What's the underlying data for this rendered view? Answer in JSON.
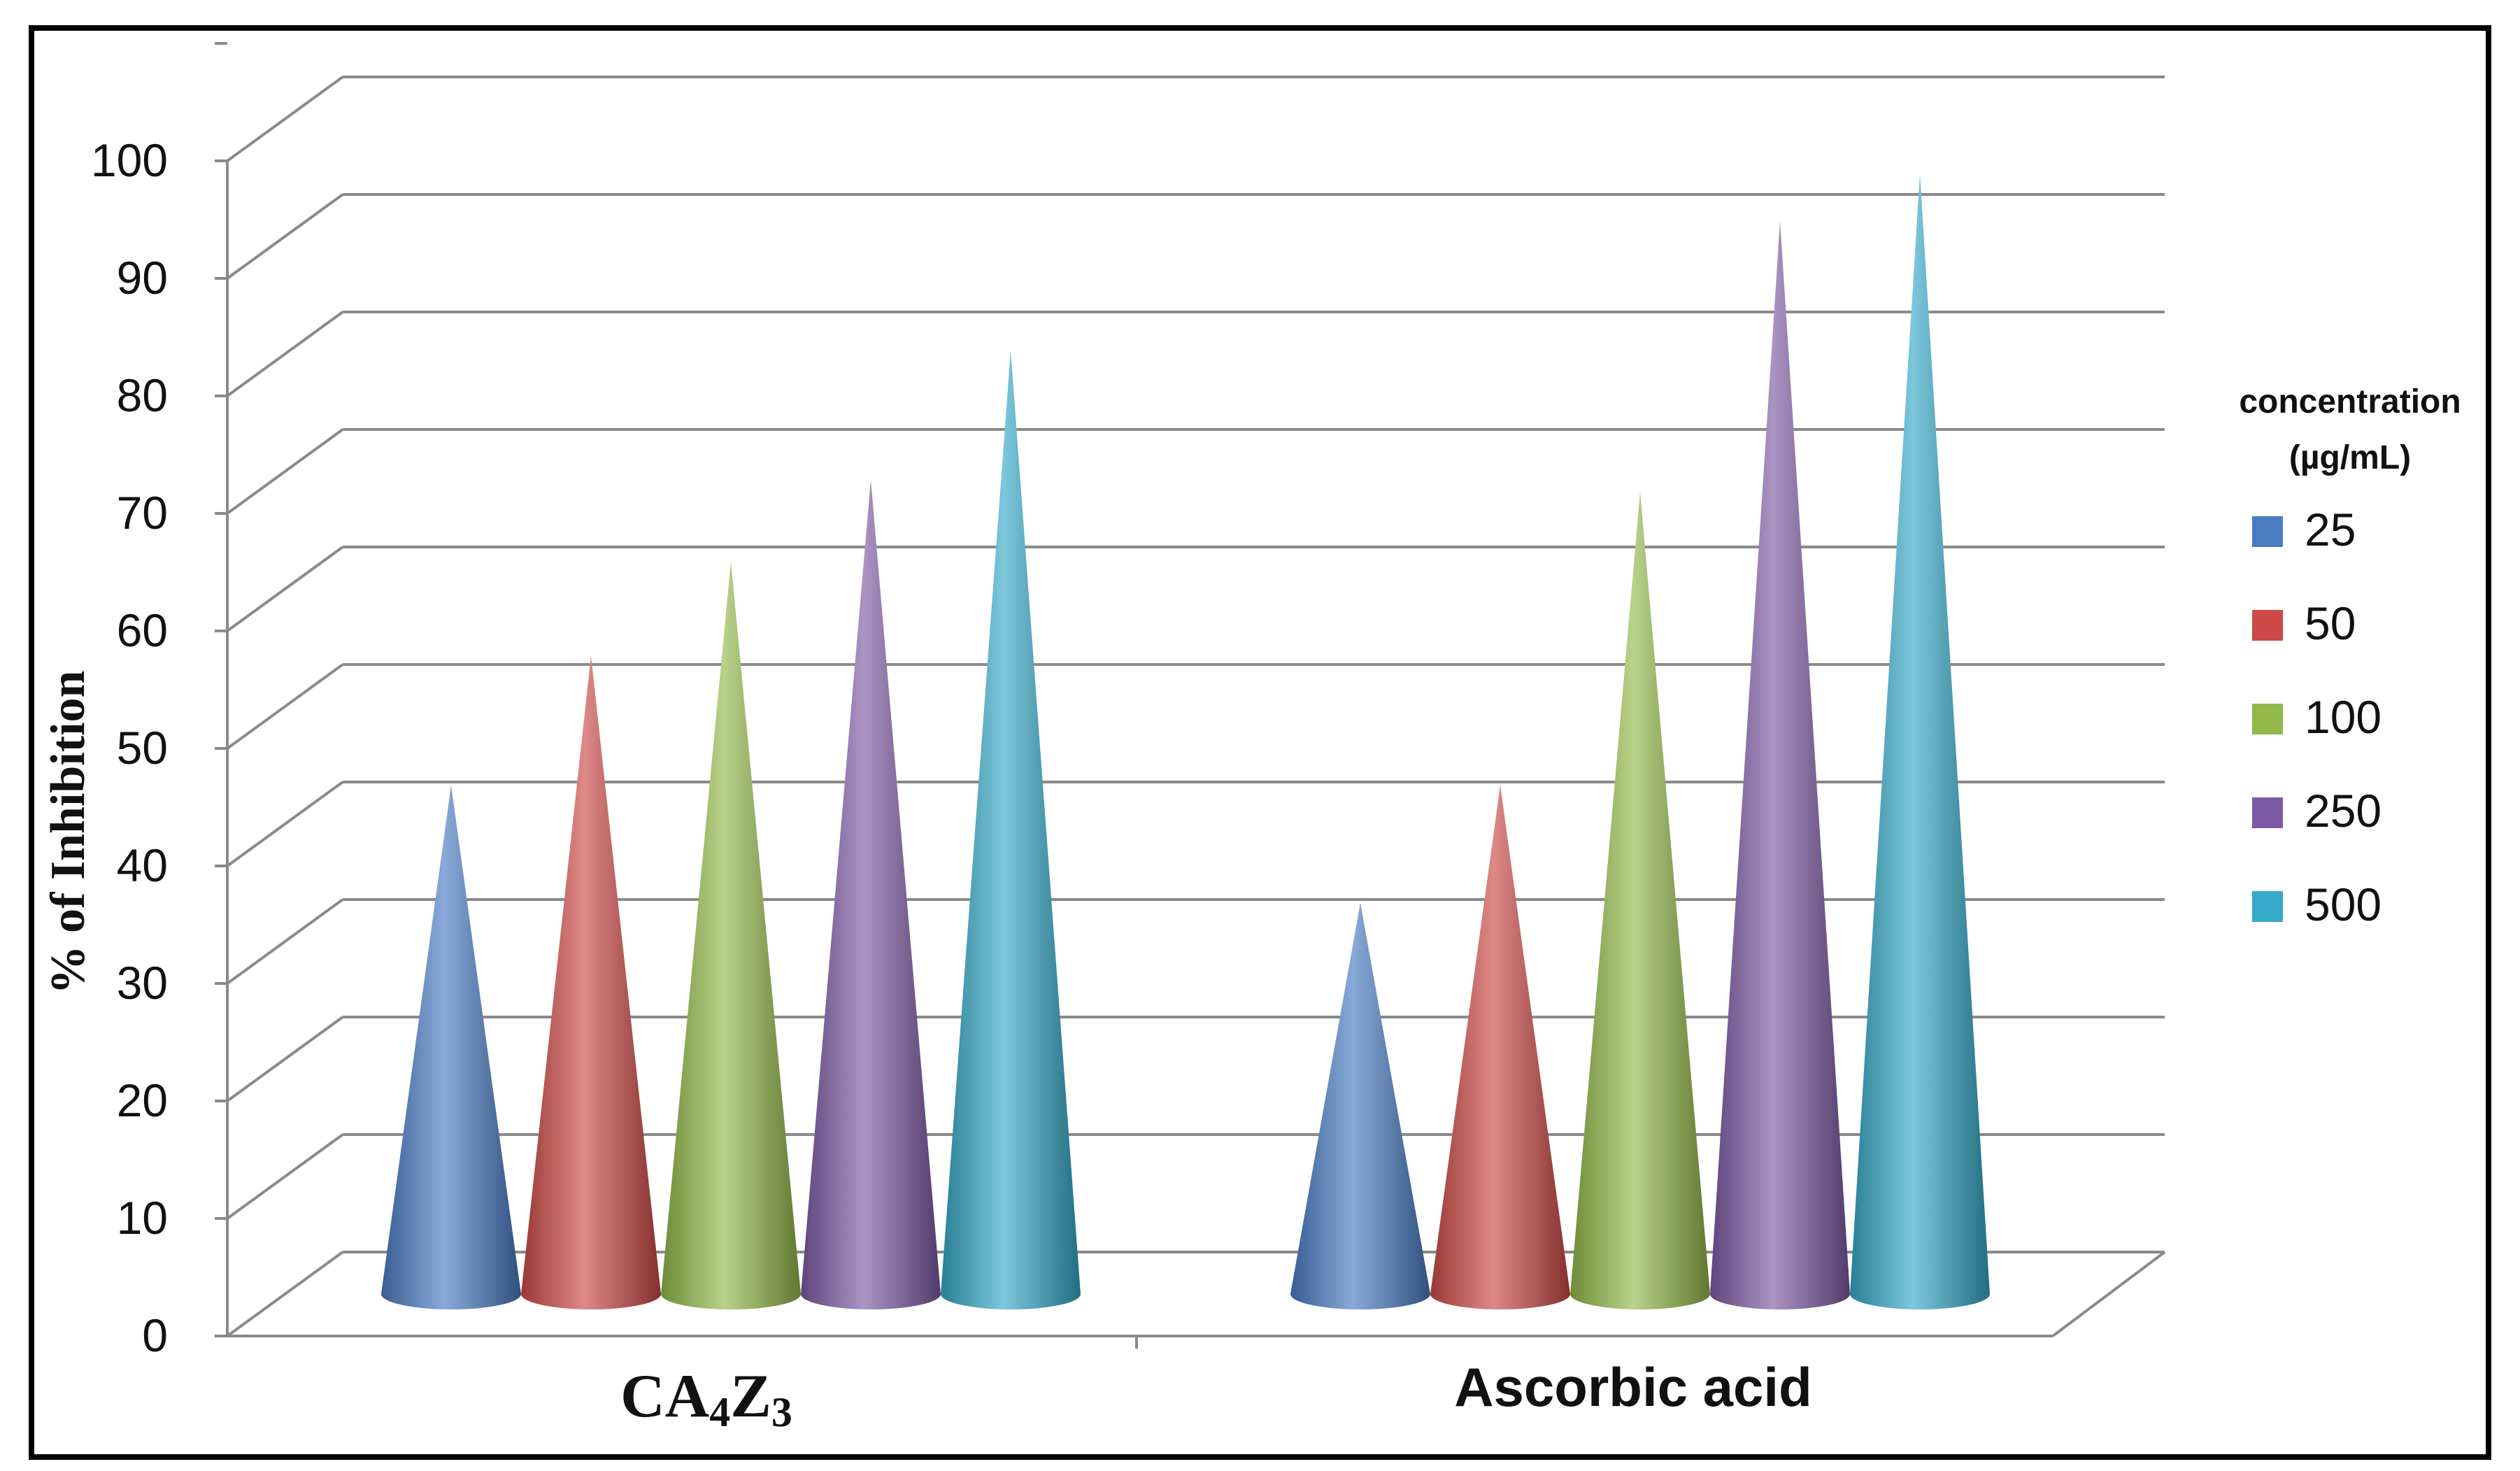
{
  "chart_data": {
    "type": "bar",
    "style": "3d-cone",
    "ylabel": "% of Inhibition",
    "ylim": [
      0,
      100
    ],
    "yticks": [
      "0",
      "10",
      "20",
      "30",
      "40",
      "50",
      "60",
      "70",
      "80",
      "90",
      "100"
    ],
    "categories": [
      {
        "name": "CA",
        "sub1": "4",
        "mid": "Z",
        "sub2": "3"
      },
      {
        "name": "Ascorbic acid"
      }
    ],
    "legend": {
      "title_line1": "concentration",
      "title_line2": "(µg/mL)",
      "placement": "right"
    },
    "series": [
      {
        "name": "25",
        "color": "#4a7cc4",
        "values": [
          43,
          33
        ]
      },
      {
        "name": "50",
        "color": "#cc4a47",
        "values": [
          54,
          43
        ]
      },
      {
        "name": "100",
        "color": "#93b94a",
        "values": [
          62,
          68
        ]
      },
      {
        "name": "250",
        "color": "#7d5aa4",
        "values": [
          69,
          91
        ]
      },
      {
        "name": "500",
        "color": "#35a9c7",
        "values": [
          80,
          95
        ]
      }
    ],
    "grid": true
  }
}
